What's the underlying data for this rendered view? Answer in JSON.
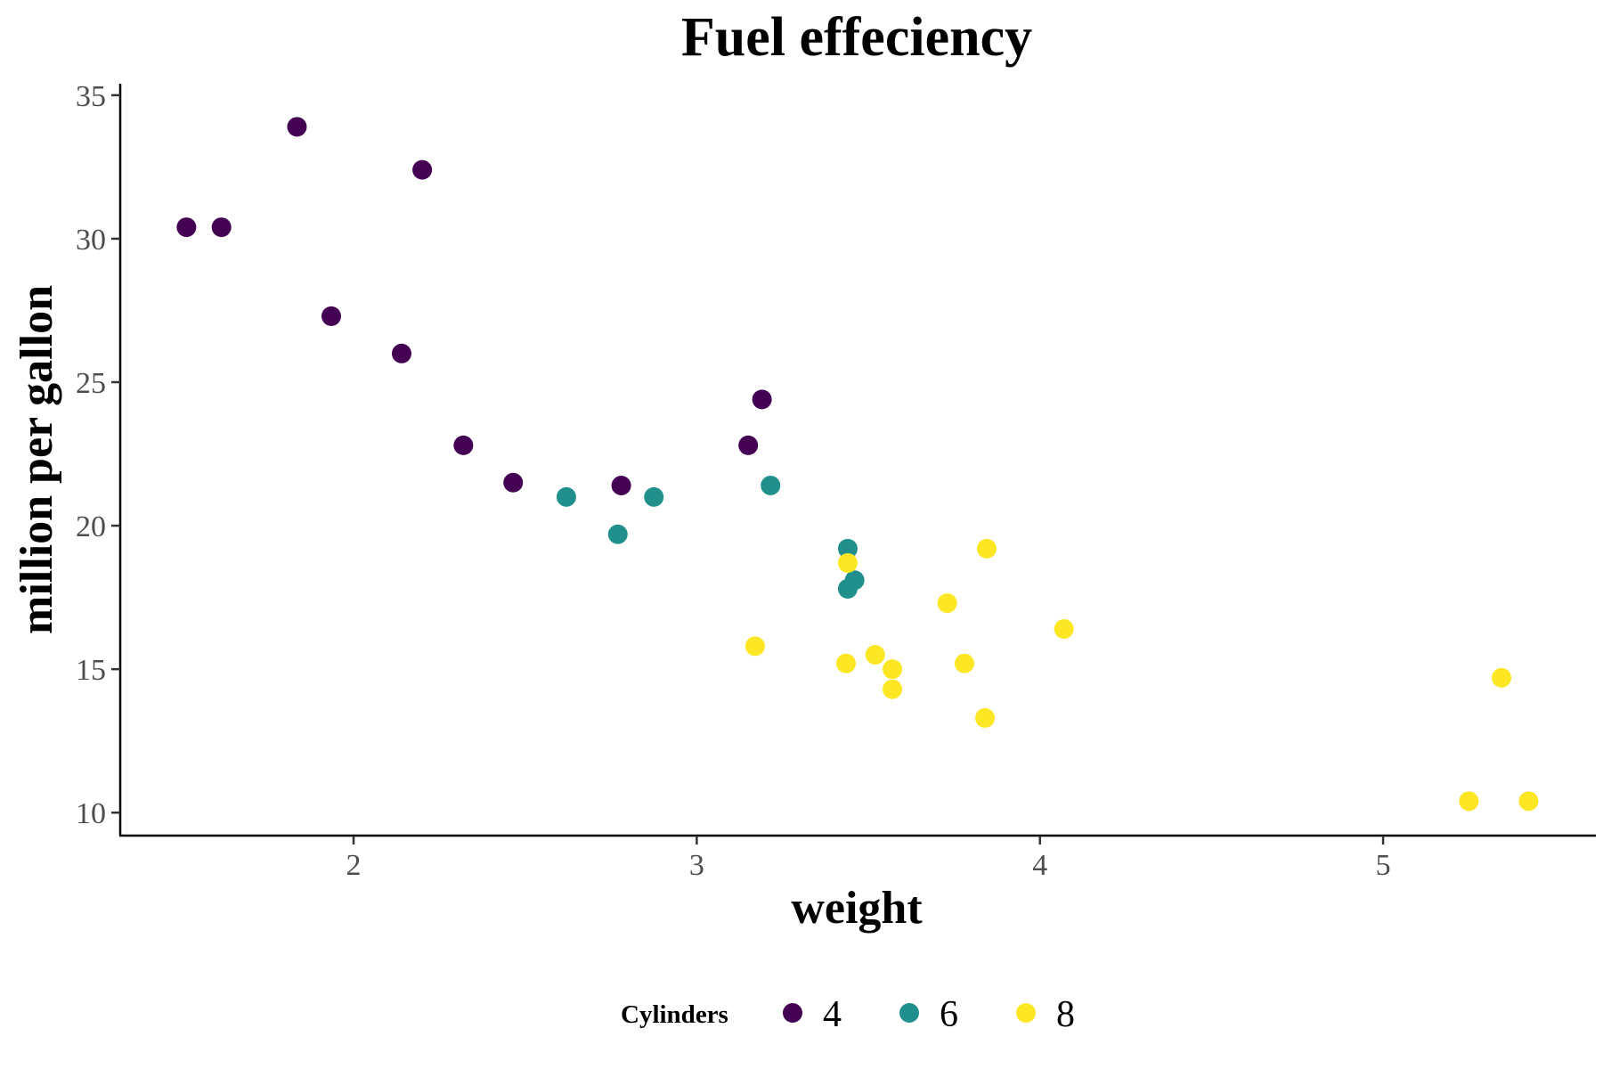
{
  "chart_data": {
    "type": "scatter",
    "title": "Fuel effeciency",
    "xlabel": "weight",
    "ylabel": "million per gallon",
    "xlim": [
      1.32,
      5.62
    ],
    "ylim": [
      9.2,
      35.4
    ],
    "x_ticks": [
      2,
      3,
      4,
      5
    ],
    "y_ticks": [
      10,
      15,
      20,
      25,
      30,
      35
    ],
    "grid": false,
    "legend": {
      "title": "Cylinders",
      "position": "bottom",
      "entries": [
        {
          "label": "4",
          "color": "#440154"
        },
        {
          "label": "6",
          "color": "#21908C"
        },
        {
          "label": "8",
          "color": "#FDE725"
        }
      ]
    },
    "series": [
      {
        "name": "4",
        "color": "#440154",
        "points": [
          [
            1.513,
            30.4
          ],
          [
            1.615,
            30.4
          ],
          [
            1.835,
            33.9
          ],
          [
            2.2,
            32.4
          ],
          [
            1.935,
            27.3
          ],
          [
            2.14,
            26.0
          ],
          [
            2.32,
            22.8
          ],
          [
            2.465,
            21.5
          ],
          [
            2.78,
            21.4
          ],
          [
            3.15,
            22.8
          ],
          [
            3.19,
            24.4
          ]
        ]
      },
      {
        "name": "6",
        "color": "#21908C",
        "points": [
          [
            2.62,
            21.0
          ],
          [
            2.875,
            21.0
          ],
          [
            2.77,
            19.7
          ],
          [
            3.215,
            21.4
          ],
          [
            3.44,
            19.2
          ],
          [
            3.46,
            18.1
          ],
          [
            3.44,
            17.8
          ]
        ]
      },
      {
        "name": "8",
        "color": "#FDE725",
        "points": [
          [
            3.44,
            18.7
          ],
          [
            3.845,
            19.2
          ],
          [
            3.73,
            17.3
          ],
          [
            4.07,
            16.4
          ],
          [
            3.17,
            15.8
          ],
          [
            3.435,
            15.2
          ],
          [
            3.52,
            15.5
          ],
          [
            3.57,
            15.0
          ],
          [
            3.57,
            14.3
          ],
          [
            3.78,
            15.2
          ],
          [
            3.84,
            13.3
          ],
          [
            5.25,
            10.4
          ],
          [
            5.424,
            10.4
          ],
          [
            5.345,
            14.7
          ]
        ]
      }
    ]
  }
}
